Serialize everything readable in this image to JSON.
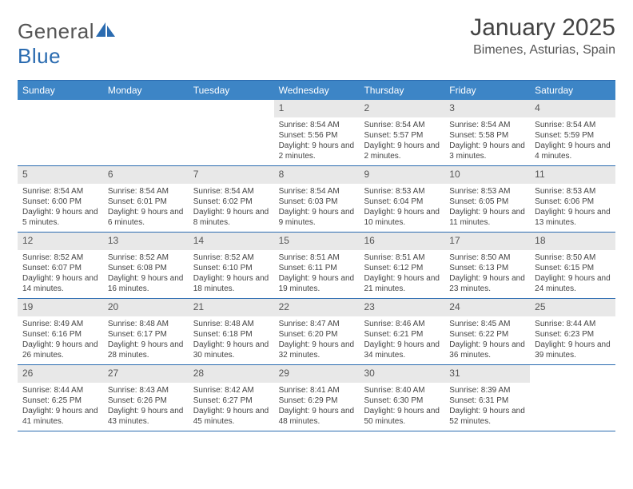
{
  "logo": {
    "text_general": "General",
    "text_blue": "Blue"
  },
  "title": "January 2025",
  "location": "Bimenes, Asturias, Spain",
  "colors": {
    "header_bg": "#3d85c6",
    "header_text": "#ffffff",
    "rule": "#2a6bb0",
    "daynum_bg": "#e8e8e8",
    "text": "#444444",
    "logo_gray": "#555555",
    "logo_blue": "#2a6bb0"
  },
  "day_headers": [
    "Sunday",
    "Monday",
    "Tuesday",
    "Wednesday",
    "Thursday",
    "Friday",
    "Saturday"
  ],
  "weeks": [
    [
      {
        "empty": true
      },
      {
        "empty": true
      },
      {
        "empty": true
      },
      {
        "day": "1",
        "sunrise": "Sunrise: 8:54 AM",
        "sunset": "Sunset: 5:56 PM",
        "daylight": "Daylight: 9 hours and 2 minutes."
      },
      {
        "day": "2",
        "sunrise": "Sunrise: 8:54 AM",
        "sunset": "Sunset: 5:57 PM",
        "daylight": "Daylight: 9 hours and 2 minutes."
      },
      {
        "day": "3",
        "sunrise": "Sunrise: 8:54 AM",
        "sunset": "Sunset: 5:58 PM",
        "daylight": "Daylight: 9 hours and 3 minutes."
      },
      {
        "day": "4",
        "sunrise": "Sunrise: 8:54 AM",
        "sunset": "Sunset: 5:59 PM",
        "daylight": "Daylight: 9 hours and 4 minutes."
      }
    ],
    [
      {
        "day": "5",
        "sunrise": "Sunrise: 8:54 AM",
        "sunset": "Sunset: 6:00 PM",
        "daylight": "Daylight: 9 hours and 5 minutes."
      },
      {
        "day": "6",
        "sunrise": "Sunrise: 8:54 AM",
        "sunset": "Sunset: 6:01 PM",
        "daylight": "Daylight: 9 hours and 6 minutes."
      },
      {
        "day": "7",
        "sunrise": "Sunrise: 8:54 AM",
        "sunset": "Sunset: 6:02 PM",
        "daylight": "Daylight: 9 hours and 8 minutes."
      },
      {
        "day": "8",
        "sunrise": "Sunrise: 8:54 AM",
        "sunset": "Sunset: 6:03 PM",
        "daylight": "Daylight: 9 hours and 9 minutes."
      },
      {
        "day": "9",
        "sunrise": "Sunrise: 8:53 AM",
        "sunset": "Sunset: 6:04 PM",
        "daylight": "Daylight: 9 hours and 10 minutes."
      },
      {
        "day": "10",
        "sunrise": "Sunrise: 8:53 AM",
        "sunset": "Sunset: 6:05 PM",
        "daylight": "Daylight: 9 hours and 11 minutes."
      },
      {
        "day": "11",
        "sunrise": "Sunrise: 8:53 AM",
        "sunset": "Sunset: 6:06 PM",
        "daylight": "Daylight: 9 hours and 13 minutes."
      }
    ],
    [
      {
        "day": "12",
        "sunrise": "Sunrise: 8:52 AM",
        "sunset": "Sunset: 6:07 PM",
        "daylight": "Daylight: 9 hours and 14 minutes."
      },
      {
        "day": "13",
        "sunrise": "Sunrise: 8:52 AM",
        "sunset": "Sunset: 6:08 PM",
        "daylight": "Daylight: 9 hours and 16 minutes."
      },
      {
        "day": "14",
        "sunrise": "Sunrise: 8:52 AM",
        "sunset": "Sunset: 6:10 PM",
        "daylight": "Daylight: 9 hours and 18 minutes."
      },
      {
        "day": "15",
        "sunrise": "Sunrise: 8:51 AM",
        "sunset": "Sunset: 6:11 PM",
        "daylight": "Daylight: 9 hours and 19 minutes."
      },
      {
        "day": "16",
        "sunrise": "Sunrise: 8:51 AM",
        "sunset": "Sunset: 6:12 PM",
        "daylight": "Daylight: 9 hours and 21 minutes."
      },
      {
        "day": "17",
        "sunrise": "Sunrise: 8:50 AM",
        "sunset": "Sunset: 6:13 PM",
        "daylight": "Daylight: 9 hours and 23 minutes."
      },
      {
        "day": "18",
        "sunrise": "Sunrise: 8:50 AM",
        "sunset": "Sunset: 6:15 PM",
        "daylight": "Daylight: 9 hours and 24 minutes."
      }
    ],
    [
      {
        "day": "19",
        "sunrise": "Sunrise: 8:49 AM",
        "sunset": "Sunset: 6:16 PM",
        "daylight": "Daylight: 9 hours and 26 minutes."
      },
      {
        "day": "20",
        "sunrise": "Sunrise: 8:48 AM",
        "sunset": "Sunset: 6:17 PM",
        "daylight": "Daylight: 9 hours and 28 minutes."
      },
      {
        "day": "21",
        "sunrise": "Sunrise: 8:48 AM",
        "sunset": "Sunset: 6:18 PM",
        "daylight": "Daylight: 9 hours and 30 minutes."
      },
      {
        "day": "22",
        "sunrise": "Sunrise: 8:47 AM",
        "sunset": "Sunset: 6:20 PM",
        "daylight": "Daylight: 9 hours and 32 minutes."
      },
      {
        "day": "23",
        "sunrise": "Sunrise: 8:46 AM",
        "sunset": "Sunset: 6:21 PM",
        "daylight": "Daylight: 9 hours and 34 minutes."
      },
      {
        "day": "24",
        "sunrise": "Sunrise: 8:45 AM",
        "sunset": "Sunset: 6:22 PM",
        "daylight": "Daylight: 9 hours and 36 minutes."
      },
      {
        "day": "25",
        "sunrise": "Sunrise: 8:44 AM",
        "sunset": "Sunset: 6:23 PM",
        "daylight": "Daylight: 9 hours and 39 minutes."
      }
    ],
    [
      {
        "day": "26",
        "sunrise": "Sunrise: 8:44 AM",
        "sunset": "Sunset: 6:25 PM",
        "daylight": "Daylight: 9 hours and 41 minutes."
      },
      {
        "day": "27",
        "sunrise": "Sunrise: 8:43 AM",
        "sunset": "Sunset: 6:26 PM",
        "daylight": "Daylight: 9 hours and 43 minutes."
      },
      {
        "day": "28",
        "sunrise": "Sunrise: 8:42 AM",
        "sunset": "Sunset: 6:27 PM",
        "daylight": "Daylight: 9 hours and 45 minutes."
      },
      {
        "day": "29",
        "sunrise": "Sunrise: 8:41 AM",
        "sunset": "Sunset: 6:29 PM",
        "daylight": "Daylight: 9 hours and 48 minutes."
      },
      {
        "day": "30",
        "sunrise": "Sunrise: 8:40 AM",
        "sunset": "Sunset: 6:30 PM",
        "daylight": "Daylight: 9 hours and 50 minutes."
      },
      {
        "day": "31",
        "sunrise": "Sunrise: 8:39 AM",
        "sunset": "Sunset: 6:31 PM",
        "daylight": "Daylight: 9 hours and 52 minutes."
      },
      {
        "empty": true
      }
    ]
  ]
}
